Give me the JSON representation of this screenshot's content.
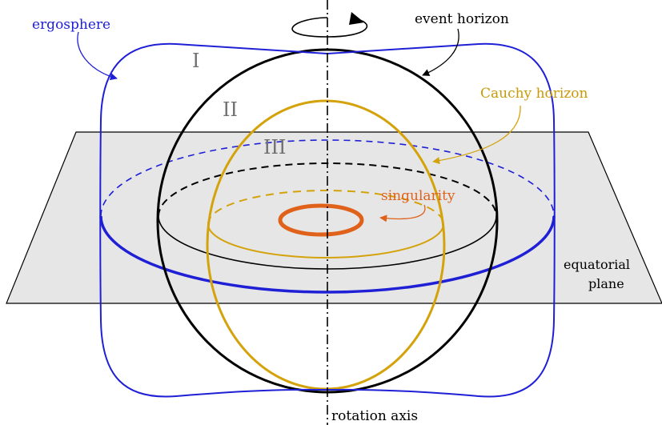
{
  "labels": {
    "ergosphere": "ergosphere",
    "event_horizon": "event horizon",
    "cauchy_horizon": "Cauchy horizon",
    "singularity": "singularity",
    "equatorial_plane_line1": "equatorial",
    "equatorial_plane_line2": "plane",
    "rotation_axis": "rotation axis",
    "region_1": "I",
    "region_2": "II",
    "region_3": "III"
  },
  "colors": {
    "ergosphere": "#1f1fd6",
    "event_horizon": "#000000",
    "cauchy_horizon": "#d4a20a",
    "singularity": "#e0611a",
    "plane_fill": "#e6e6e6",
    "region_text": "#707070"
  }
}
